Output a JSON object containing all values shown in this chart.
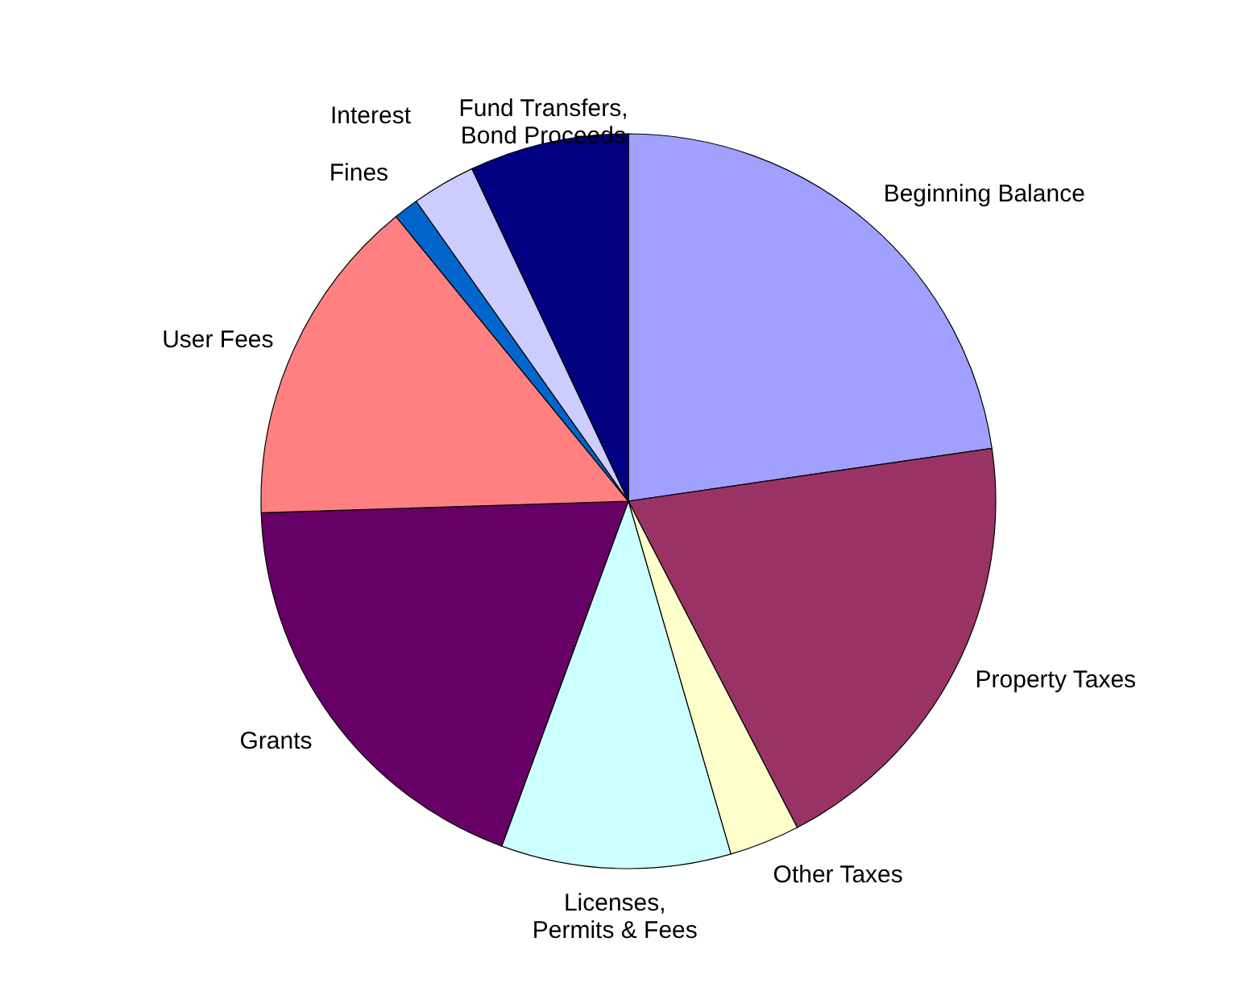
{
  "chart_data": {
    "type": "pie",
    "categories": [
      "Beginning Balance",
      "Property Taxes",
      "Other Taxes",
      "Licenses, Permits & Fees",
      "Grants",
      "User Fees",
      "Fines",
      "Interest",
      "Fund Transfers, Bond Proceeds"
    ],
    "values": [
      22.7,
      19.7,
      3.1,
      10.1,
      18.9,
      14.6,
      1.1,
      2.8,
      7.0
    ],
    "colors": [
      "#a0a0ff",
      "#993366",
      "#ffffcc",
      "#ccffff",
      "#660066",
      "#ff8080",
      "#0066cc",
      "#ccccff",
      "#000080"
    ]
  }
}
